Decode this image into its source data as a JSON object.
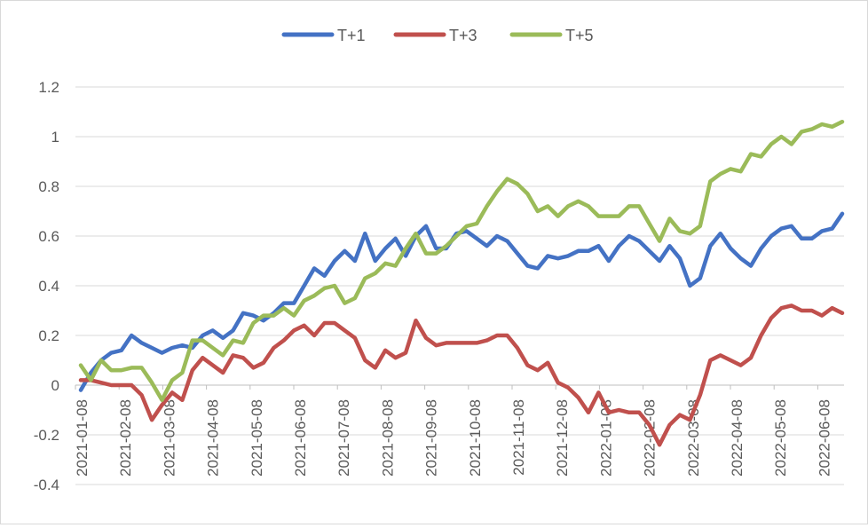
{
  "chart_data": {
    "type": "line",
    "title": "",
    "xlabel": "",
    "ylabel": "",
    "ylim": [
      -0.4,
      1.2
    ],
    "yticks": [
      "-0.4",
      "-0.2",
      "0",
      "0.2",
      "0.4",
      "0.6",
      "0.8",
      "1",
      "1.2"
    ],
    "xticks": [
      "2021-01-08",
      "2021-02-08",
      "2021-03-08",
      "2021-04-08",
      "2021-05-08",
      "2021-06-08",
      "2021-07-08",
      "2021-08-08",
      "2021-09-08",
      "2021-10-08",
      "2021-11-08",
      "2021-12-08",
      "2022-01-08",
      "2022-02-08",
      "2022-03-08",
      "2022-04-08",
      "2022-05-08",
      "2022-06-08"
    ],
    "grid": true,
    "legend_position": "top-center",
    "points_per_series": 76,
    "series": [
      {
        "name": "T+1",
        "color": "#4472c4",
        "values": [
          -0.02,
          0.05,
          0.1,
          0.13,
          0.14,
          0.2,
          0.17,
          0.15,
          0.13,
          0.15,
          0.16,
          0.15,
          0.2,
          0.22,
          0.19,
          0.22,
          0.29,
          0.28,
          0.26,
          0.29,
          0.33,
          0.33,
          0.4,
          0.47,
          0.44,
          0.5,
          0.54,
          0.5,
          0.61,
          0.5,
          0.55,
          0.59,
          0.52,
          0.6,
          0.64,
          0.55,
          0.55,
          0.61,
          0.62,
          0.59,
          0.56,
          0.6,
          0.58,
          0.53,
          0.48,
          0.47,
          0.52,
          0.51,
          0.52,
          0.54,
          0.54,
          0.56,
          0.5,
          0.56,
          0.6,
          0.58,
          0.54,
          0.5,
          0.56,
          0.51,
          0.4,
          0.43,
          0.56,
          0.61,
          0.55,
          0.51,
          0.48,
          0.55,
          0.6,
          0.63,
          0.64,
          0.59,
          0.59,
          0.62,
          0.63,
          0.69
        ]
      },
      {
        "name": "T+3",
        "color": "#c0504d",
        "values": [
          0.02,
          0.02,
          0.01,
          0.0,
          0.0,
          0.0,
          -0.04,
          -0.14,
          -0.08,
          -0.03,
          -0.06,
          0.06,
          0.11,
          0.08,
          0.05,
          0.12,
          0.11,
          0.07,
          0.09,
          0.15,
          0.18,
          0.22,
          0.24,
          0.2,
          0.25,
          0.25,
          0.22,
          0.19,
          0.1,
          0.07,
          0.14,
          0.11,
          0.13,
          0.26,
          0.19,
          0.16,
          0.17,
          0.17,
          0.17,
          0.17,
          0.18,
          0.2,
          0.2,
          0.15,
          0.08,
          0.06,
          0.09,
          0.01,
          -0.01,
          -0.05,
          -0.11,
          -0.03,
          -0.11,
          -0.1,
          -0.11,
          -0.11,
          -0.16,
          -0.24,
          -0.16,
          -0.12,
          -0.14,
          -0.04,
          0.1,
          0.12,
          0.1,
          0.08,
          0.11,
          0.2,
          0.27,
          0.31,
          0.32,
          0.3,
          0.3,
          0.28,
          0.31,
          0.29
        ]
      },
      {
        "name": "T+5",
        "color": "#9bbb59",
        "values": [
          0.08,
          0.02,
          0.1,
          0.06,
          0.06,
          0.07,
          0.07,
          0.01,
          -0.06,
          0.02,
          0.05,
          0.18,
          0.18,
          0.15,
          0.12,
          0.18,
          0.17,
          0.25,
          0.28,
          0.28,
          0.31,
          0.28,
          0.34,
          0.36,
          0.39,
          0.4,
          0.33,
          0.35,
          0.43,
          0.45,
          0.49,
          0.48,
          0.55,
          0.61,
          0.53,
          0.53,
          0.56,
          0.6,
          0.64,
          0.65,
          0.72,
          0.78,
          0.83,
          0.81,
          0.77,
          0.7,
          0.72,
          0.68,
          0.72,
          0.74,
          0.72,
          0.68,
          0.68,
          0.68,
          0.72,
          0.72,
          0.65,
          0.58,
          0.67,
          0.62,
          0.61,
          0.64,
          0.82,
          0.85,
          0.87,
          0.86,
          0.93,
          0.92,
          0.97,
          1.0,
          0.97,
          1.02,
          1.03,
          1.05,
          1.04,
          1.06
        ]
      }
    ]
  }
}
